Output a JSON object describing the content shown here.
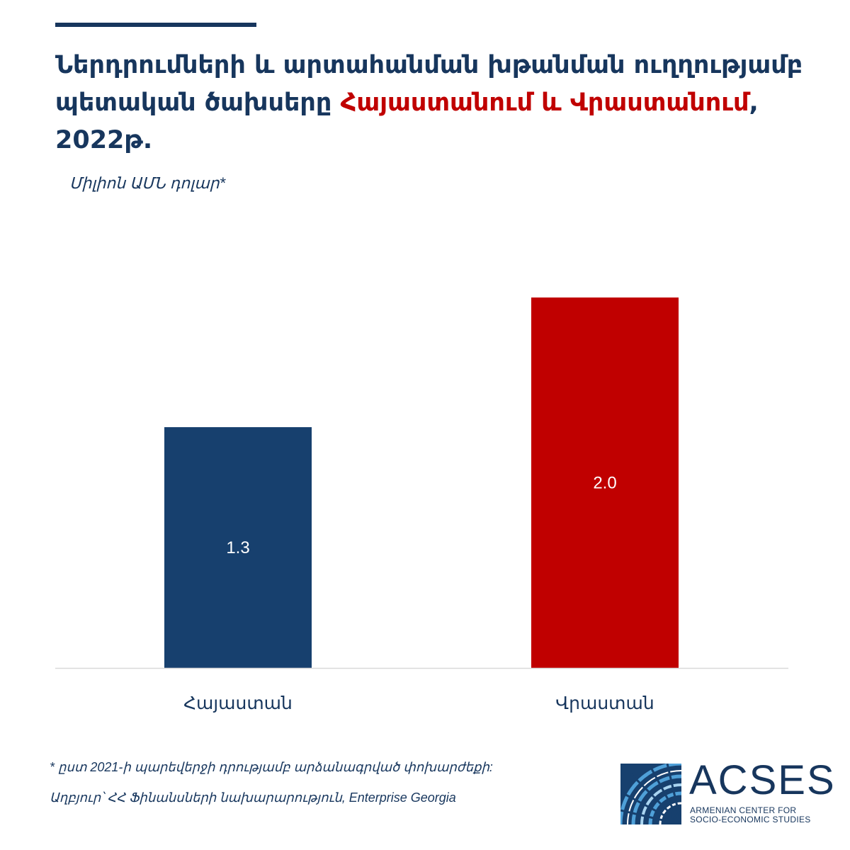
{
  "title": {
    "part1": "Ներդրումների և արտահանման խթանման ուղղությամբ պետական ծախսերը ",
    "highlight": "Հայաստանում և Վրաստանում",
    "part2": ", 2022թ."
  },
  "subtitle": "Միլիոն ԱՄՆ դոլար*",
  "chart_data": {
    "type": "bar",
    "title": "Ներդրումների և արտահանման խթանման ուղղությամբ պետական ծախսերը Հայաստանում և Վրաստանում, 2022թ.",
    "ylabel": "Միլիոն ԱՄՆ դոլար*",
    "xlabel": "",
    "categories": [
      "Հայաստան",
      "Վրաստան"
    ],
    "values": [
      1.3,
      2.0
    ],
    "value_labels": [
      "1.3",
      "2.0"
    ],
    "colors": [
      "#17406e",
      "#c00000"
    ],
    "ylim": [
      0,
      2.0
    ],
    "grid": false,
    "legend": "none"
  },
  "footnotes": {
    "note": "* ըստ 2021-ի պարեվերջի դրությամբ արձանագրված փոխարժեքի:",
    "source": "Աղբյուր՝ ՀՀ Ֆինանսների նախարարություն, Enterprise Georgia"
  },
  "logo": {
    "name": "ACSES",
    "line1": "ARMENIAN CENTER FOR",
    "line2": "SOCIO-ECONOMIC STUDIES"
  },
  "colors": {
    "navy": "#17365d",
    "bar_armenia": "#17406e",
    "bar_georgia": "#c00000",
    "highlight": "#c00000"
  }
}
